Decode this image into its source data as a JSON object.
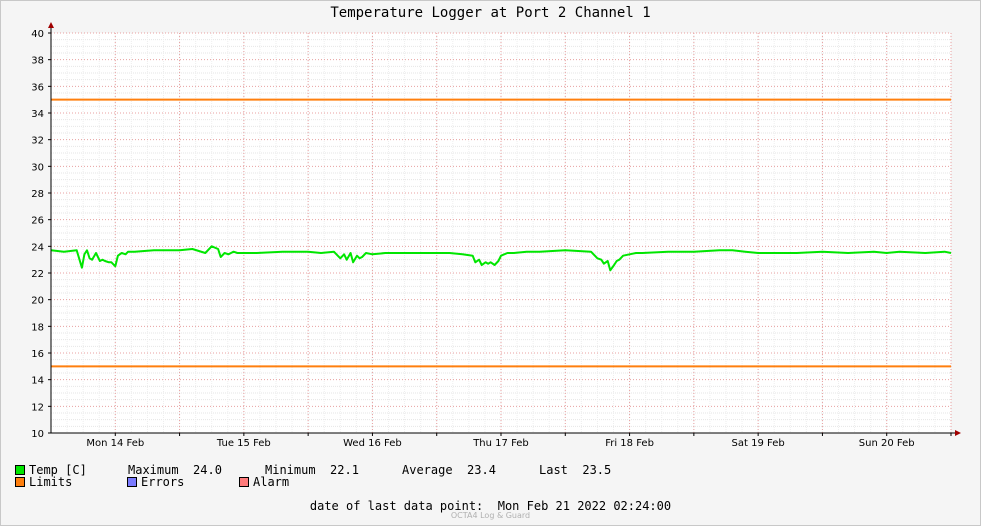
{
  "chart_data": {
    "type": "line",
    "title": "Temperature Logger at Port 2 Channel 1",
    "ylim": [
      10,
      40
    ],
    "y_ticks": [
      10,
      12,
      14,
      16,
      18,
      20,
      22,
      24,
      26,
      28,
      30,
      32,
      34,
      36,
      38,
      40
    ],
    "x_tick_labels": [
      "Mon 14 Feb",
      "Tue 15 Feb",
      "Wed 16 Feb",
      "Thu 17 Feb",
      "Fri 18 Feb",
      "Sat 19 Feb",
      "Sun 20 Feb"
    ],
    "x_range_days": [
      0,
      7
    ],
    "grid": true,
    "limits": {
      "upper": 35,
      "lower": 15,
      "color": "#ff7f0e"
    },
    "series": [
      {
        "name": "Temp [C]",
        "color": "#00e600",
        "x": [
          0,
          0.1,
          0.2,
          0.24,
          0.26,
          0.28,
          0.3,
          0.32,
          0.35,
          0.38,
          0.4,
          0.42,
          0.45,
          0.47,
          0.5,
          0.52,
          0.55,
          0.58,
          0.6,
          0.65,
          0.8,
          1.0,
          1.1,
          1.2,
          1.25,
          1.3,
          1.32,
          1.35,
          1.38,
          1.4,
          1.42,
          1.45,
          1.6,
          1.8,
          2.0,
          2.1,
          2.2,
          2.25,
          2.28,
          2.3,
          2.33,
          2.35,
          2.38,
          2.4,
          2.42,
          2.45,
          2.5,
          2.6,
          2.8,
          3.0,
          3.1,
          3.2,
          3.28,
          3.3,
          3.33,
          3.35,
          3.38,
          3.4,
          3.42,
          3.45,
          3.48,
          3.5,
          3.55,
          3.6,
          3.7,
          3.8,
          4.0,
          4.2,
          4.25,
          4.28,
          4.3,
          4.33,
          4.35,
          4.38,
          4.4,
          4.42,
          4.45,
          4.5,
          4.55,
          4.6,
          4.8,
          5.0,
          5.2,
          5.3,
          5.4,
          5.5,
          5.6,
          5.8,
          6.0,
          6.2,
          6.4,
          6.5,
          6.6,
          6.8,
          6.95,
          7.0
        ],
        "values": [
          23.7,
          23.6,
          23.7,
          22.4,
          23.4,
          23.7,
          23.1,
          23.0,
          23.5,
          22.9,
          23.0,
          22.9,
          22.8,
          22.8,
          22.5,
          23.3,
          23.5,
          23.4,
          23.6,
          23.6,
          23.7,
          23.7,
          23.8,
          23.5,
          24.0,
          23.8,
          23.2,
          23.5,
          23.4,
          23.5,
          23.6,
          23.5,
          23.5,
          23.6,
          23.6,
          23.5,
          23.6,
          23.1,
          23.4,
          23.0,
          23.5,
          22.8,
          23.3,
          23.1,
          23.2,
          23.5,
          23.4,
          23.5,
          23.5,
          23.5,
          23.5,
          23.4,
          23.3,
          22.8,
          23.0,
          22.6,
          22.8,
          22.7,
          22.8,
          22.6,
          22.9,
          23.3,
          23.5,
          23.5,
          23.6,
          23.6,
          23.7,
          23.6,
          23.1,
          23.0,
          22.7,
          22.9,
          22.2,
          22.6,
          22.9,
          23.0,
          23.3,
          23.4,
          23.5,
          23.5,
          23.6,
          23.6,
          23.7,
          23.7,
          23.6,
          23.5,
          23.5,
          23.5,
          23.6,
          23.5,
          23.6,
          23.5,
          23.6,
          23.5,
          23.6,
          23.5
        ]
      }
    ]
  },
  "legend": {
    "temp_label": "Temp [C]",
    "max_label": "Maximum",
    "max_value": "24.0",
    "min_label": "Minimum",
    "min_value": "22.1",
    "avg_label": "Average",
    "avg_value": "23.4",
    "last_label": "Last",
    "last_value": "23.5",
    "limits_label": "Limits",
    "errors_label": "Errors",
    "alarm_label": "Alarm",
    "colors": {
      "temp": "#00e600",
      "limits": "#ff7f0e",
      "errors": "#7b7bff",
      "alarm": "#ff7b7b"
    }
  },
  "footer": {
    "label": "date of last data point:",
    "value": "Mon Feb 21 2022 02:24:00"
  },
  "watermark": "OCTA4 Log & Guard"
}
